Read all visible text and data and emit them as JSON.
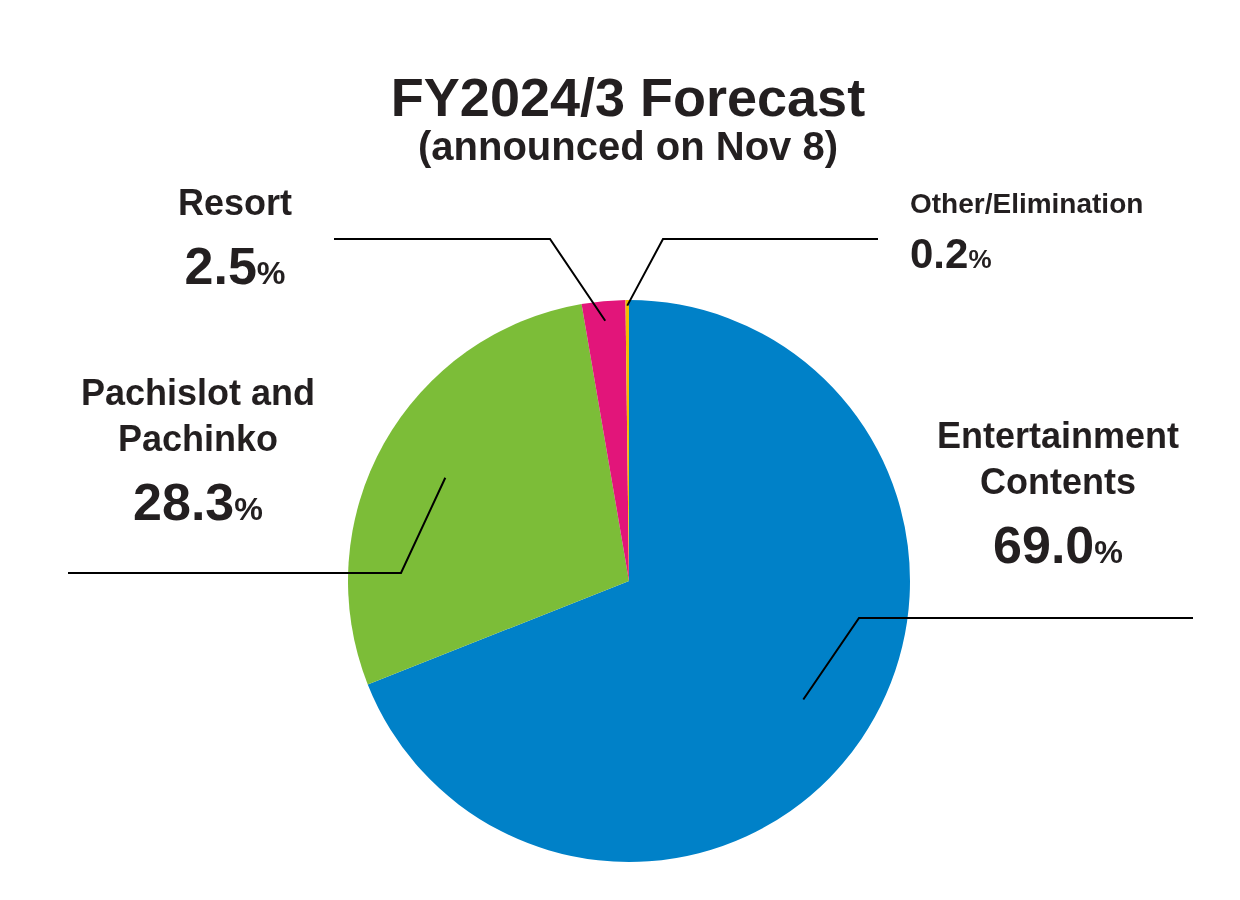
{
  "chart_data": {
    "type": "pie",
    "title": "FY2024/3 Forecast",
    "subtitle": "(announced on Nov 8)",
    "categories": [
      "Entertainment Contents",
      "Pachislot and Pachinko",
      "Resort",
      "Other/Elimination"
    ],
    "values": [
      69.0,
      28.3,
      2.5,
      0.2
    ],
    "colors": [
      "#0081c8",
      "#7cbd38",
      "#e2157a",
      "#f0c000"
    ],
    "value_labels": [
      "69.0%",
      "28.3%",
      "2.5%",
      "0.2%"
    ]
  }
}
